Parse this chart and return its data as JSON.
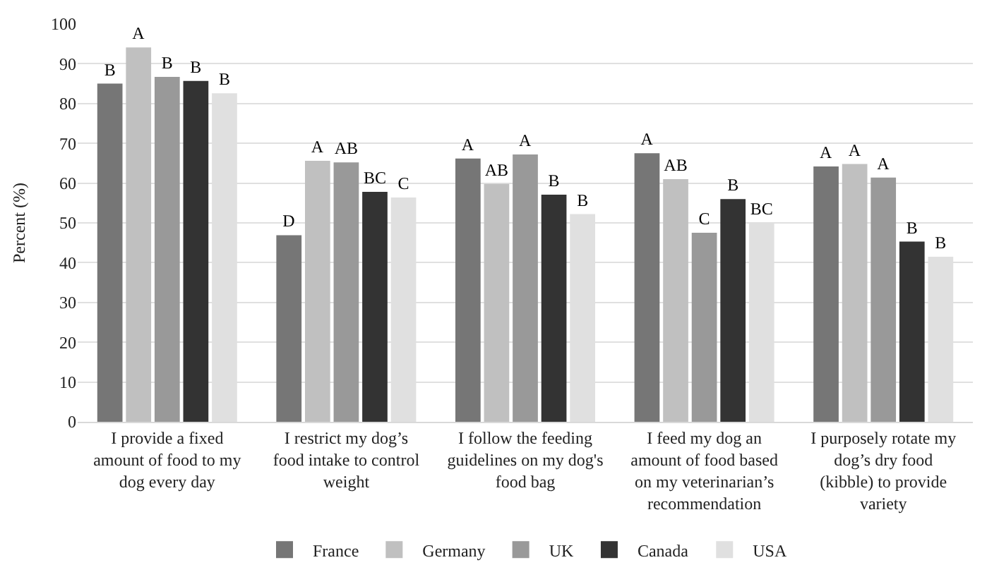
{
  "chart_data": {
    "type": "bar",
    "ylabel": "Percent (%)",
    "categories": [
      "I provide a fixed amount of food to my dog every day",
      "I restrict my dog’s food intake to control weight",
      "I follow the feeding guidelines on my dog's food bag",
      "I feed my dog an amount of food based on my veterinarian’s recommendation",
      "I purposely rotate my dog’s dry food (kibble) to provide variety"
    ],
    "series": [
      {
        "name": "France",
        "color": "#767676",
        "values": [
          85.0,
          46.9,
          66.2,
          67.5,
          64.2
        ],
        "value_labels": [
          "B",
          "D",
          "A",
          "A",
          "A"
        ]
      },
      {
        "name": "Germany",
        "color": "#c0c0c0",
        "values": [
          94.1,
          65.6,
          59.8,
          61.0,
          64.8
        ],
        "value_labels": [
          "A",
          "A",
          "AB",
          "AB",
          "A"
        ]
      },
      {
        "name": "UK",
        "color": "#999999",
        "values": [
          86.7,
          65.2,
          67.2,
          47.5,
          61.4
        ],
        "value_labels": [
          "B",
          "AB",
          "A",
          "C",
          "A"
        ]
      },
      {
        "name": "Canada",
        "color": "#333333",
        "values": [
          85.7,
          57.8,
          57.1,
          56.0,
          45.3
        ],
        "value_labels": [
          "B",
          "BC",
          "B",
          "B",
          "B"
        ]
      },
      {
        "name": "USA",
        "color": "#e0e0e0",
        "values": [
          82.6,
          56.4,
          52.2,
          50.0,
          41.5
        ],
        "value_labels": [
          "B",
          "C",
          "B",
          "BC",
          "B"
        ]
      }
    ],
    "ylim": [
      0,
      100
    ],
    "yticks": [
      0,
      10,
      20,
      30,
      40,
      50,
      60,
      70,
      80,
      90,
      100
    ],
    "grid": "y",
    "legend": "bottom"
  }
}
